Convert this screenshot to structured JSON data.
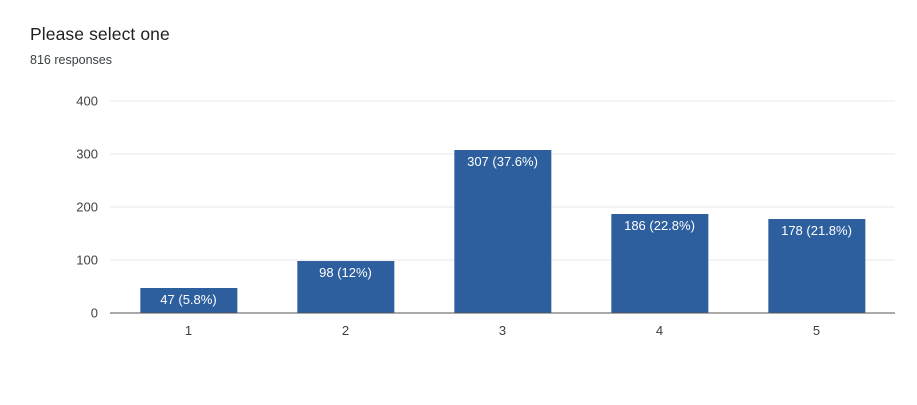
{
  "chart_data": {
    "type": "bar",
    "title": "Please select one",
    "subtitle": "816 responses",
    "categories": [
      "1",
      "2",
      "3",
      "4",
      "5"
    ],
    "values": [
      47,
      98,
      307,
      186,
      178
    ],
    "bar_labels": [
      "47 (5.8%)",
      "98 (12%)",
      "307 (37.6%)",
      "186 (22.8%)",
      "178 (21.8%)"
    ],
    "ylim": [
      0,
      400
    ],
    "yticks": [
      0,
      100,
      200,
      300,
      400
    ],
    "grid": "horizontal",
    "legend": "none",
    "bar_color": "#2d5f9e",
    "bar_label_color": "#ffffff"
  }
}
